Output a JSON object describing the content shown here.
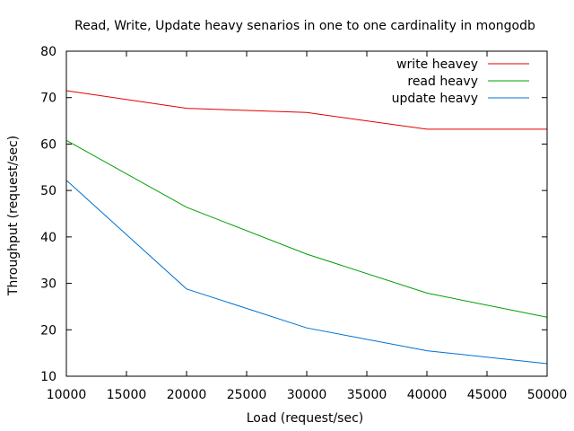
{
  "chart_data": {
    "type": "line",
    "title": "Read, Write, Update heavy senarios in one to one cardinality in mongodb",
    "xlabel": "Load (request/sec)",
    "ylabel": "Throughput (request/sec)",
    "xlim": [
      10000,
      50000
    ],
    "ylim": [
      10,
      80
    ],
    "x_ticks": [
      10000,
      15000,
      20000,
      25000,
      30000,
      35000,
      40000,
      45000,
      50000
    ],
    "y_ticks": [
      10,
      20,
      30,
      40,
      50,
      60,
      70,
      80
    ],
    "grid": false,
    "legend_position": "top-right",
    "series": [
      {
        "name": "write heavey",
        "color": "#e00000",
        "x": [
          10000,
          20000,
          30000,
          40000,
          50000
        ],
        "y": [
          71.5,
          67.7,
          66.8,
          63.2,
          63.2
        ]
      },
      {
        "name": "read heavy",
        "color": "#00a000",
        "x": [
          10000,
          20000,
          30000,
          40000,
          50000
        ],
        "y": [
          60.8,
          46.4,
          36.3,
          27.9,
          22.7
        ]
      },
      {
        "name": "update heavy",
        "color": "#0070d0",
        "x": [
          10000,
          20000,
          30000,
          40000,
          50000
        ],
        "y": [
          52.2,
          28.8,
          20.4,
          15.5,
          12.7
        ]
      }
    ]
  }
}
